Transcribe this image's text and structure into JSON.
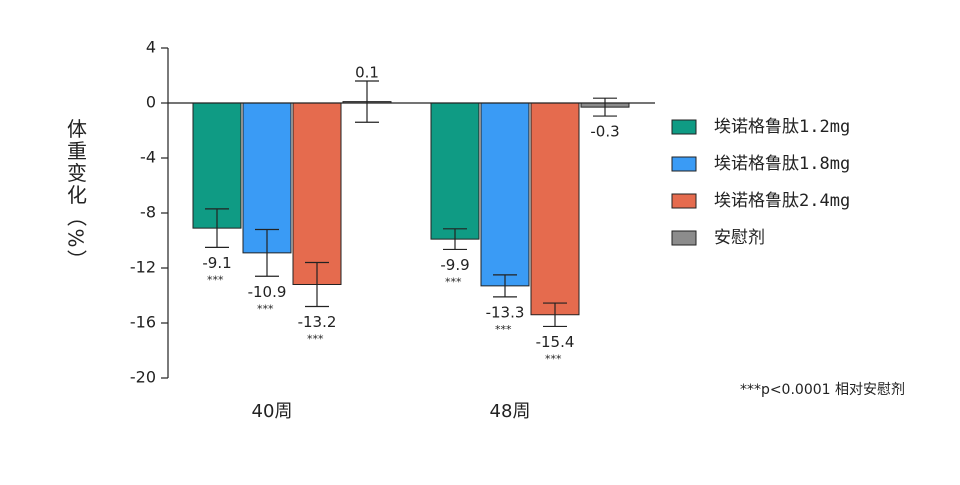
{
  "chart_data": {
    "type": "bar",
    "y_label": "体重变化（%）",
    "categories": [
      "40周",
      "48周"
    ],
    "series": [
      {
        "name": "埃诺格鲁肽1.2mg",
        "color": "#0f9b84",
        "values": [
          -9.1,
          -9.9
        ],
        "errors": [
          1.4,
          0.75
        ],
        "significance": [
          "***",
          "***"
        ]
      },
      {
        "name": "埃诺格鲁肽1.8mg",
        "color": "#3a9bf5",
        "values": [
          -10.9,
          -13.3
        ],
        "errors": [
          1.7,
          0.8
        ],
        "significance": [
          "***",
          "***"
        ]
      },
      {
        "name": "埃诺格鲁肽2.4mg",
        "color": "#e56b4e",
        "values": [
          -13.2,
          -15.4
        ],
        "errors": [
          1.6,
          0.85
        ],
        "significance": [
          "***",
          "***"
        ]
      },
      {
        "name": "安慰剂",
        "color": "#8c8c8c",
        "values": [
          0.1,
          -0.3
        ],
        "errors": [
          1.5,
          0.65
        ]
      }
    ],
    "ylim": [
      -20,
      4
    ],
    "yticks": [
      -20,
      -16,
      -12,
      -8,
      -4,
      0,
      4
    ],
    "footnote": "***p<0.0001 相对安慰剂"
  }
}
